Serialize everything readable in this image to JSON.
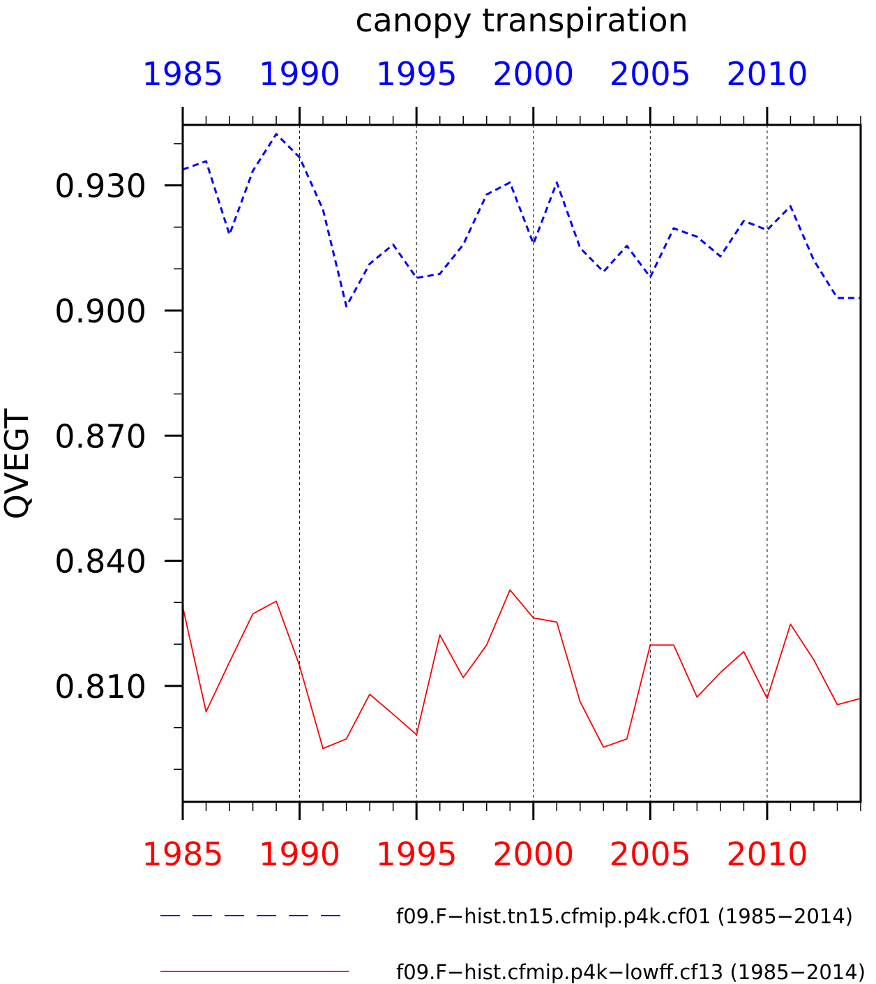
{
  "chart_data": {
    "type": "line",
    "title": "canopy transpiration",
    "ylabel": "QVEGT",
    "xlabel": "",
    "xlim": [
      1985,
      2014
    ],
    "ylim": [
      0.7822,
      0.9445
    ],
    "x_ticks": [
      1985,
      1990,
      1995,
      2000,
      2005,
      2010
    ],
    "x_tick_labels": [
      "1985",
      "1990",
      "1995",
      "2000",
      "2005",
      "2010"
    ],
    "y_ticks": [
      0.81,
      0.84,
      0.87,
      0.9,
      0.93
    ],
    "y_tick_labels": [
      "0.810",
      "0.840",
      "0.870",
      "0.900",
      "0.930"
    ],
    "vertical_grid": true,
    "top_axis_color": "#0000ff",
    "bottom_axis_color": "#ff0000",
    "x": [
      1985,
      1986,
      1987,
      1988,
      1989,
      1990,
      1991,
      1992,
      1993,
      1994,
      1995,
      1996,
      1997,
      1998,
      1999,
      2000,
      2001,
      2002,
      2003,
      2004,
      2005,
      2006,
      2007,
      2008,
      2009,
      2010,
      2011,
      2012,
      2013,
      2014
    ],
    "series": [
      {
        "name": "f09.F−hist.tn15.cfmip.p4k.cf01 (1985−2014)",
        "color": "#0000ff",
        "dash": "dashed",
        "values": [
          0.9338,
          0.9358,
          0.9182,
          0.9335,
          0.9423,
          0.9367,
          0.9242,
          0.901,
          0.9112,
          0.9158,
          0.9078,
          0.9088,
          0.9158,
          0.9278,
          0.9307,
          0.916,
          0.9307,
          0.915,
          0.9093,
          0.9155,
          0.908,
          0.9197,
          0.9177,
          0.913,
          0.9215,
          0.9193,
          0.925,
          0.912,
          0.903,
          0.903
        ]
      },
      {
        "name": "f09.F−hist.cfmip.p4k−lowff.cf13 (1985−2014)",
        "color": "#ff0000",
        "dash": "solid",
        "values": [
          0.829,
          0.8038,
          0.8157,
          0.8273,
          0.8303,
          0.8148,
          0.795,
          0.7973,
          0.808,
          0.8032,
          0.7983,
          0.8222,
          0.812,
          0.8198,
          0.833,
          0.8263,
          0.8253,
          0.8062,
          0.7953,
          0.7973,
          0.8198,
          0.8198,
          0.8073,
          0.8132,
          0.8182,
          0.807,
          0.8248,
          0.8162,
          0.8055,
          0.807
        ]
      }
    ]
  }
}
